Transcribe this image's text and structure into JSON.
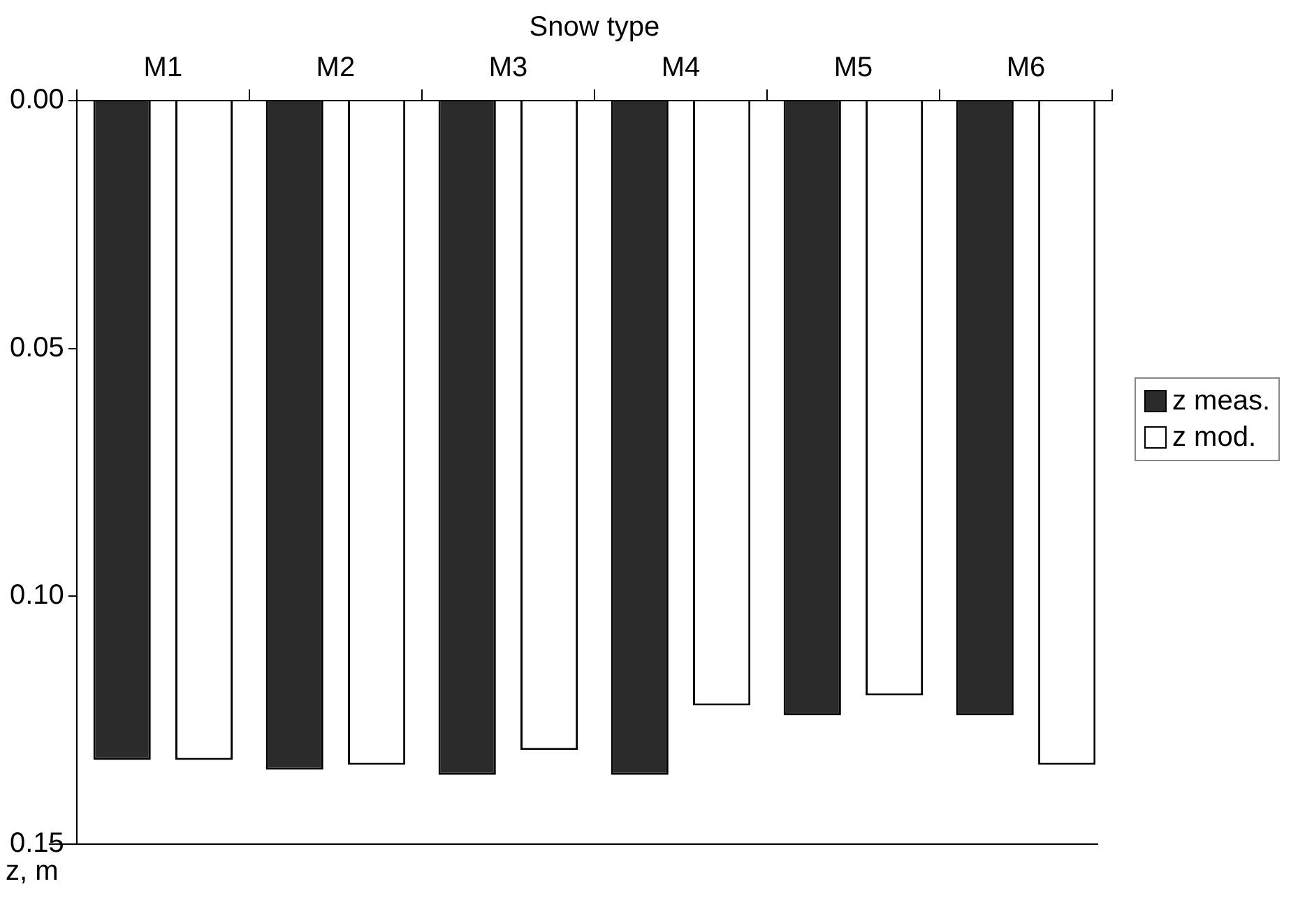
{
  "chart_data": {
    "type": "bar",
    "xlabel": "Snow type",
    "ylabel": "z, m",
    "categories": [
      "M1",
      "M2",
      "M3",
      "M4",
      "M5",
      "M6"
    ],
    "series": [
      {
        "name": "z meas.",
        "color": "#2b2b2b",
        "values": [
          0.133,
          0.135,
          0.136,
          0.136,
          0.124,
          0.124
        ]
      },
      {
        "name": "z mod.",
        "color": "#ffffff",
        "values": [
          0.133,
          0.134,
          0.131,
          0.122,
          0.12,
          0.134
        ]
      }
    ],
    "ylim": [
      0.15,
      0
    ],
    "yticks": [
      {
        "value": 0,
        "label": "0.00"
      },
      {
        "value": 0.05,
        "label": "0.05"
      },
      {
        "value": 0.1,
        "label": "0.10"
      },
      {
        "value": 0.15,
        "label": "0.15"
      }
    ],
    "grid": false,
    "legend": "right"
  }
}
